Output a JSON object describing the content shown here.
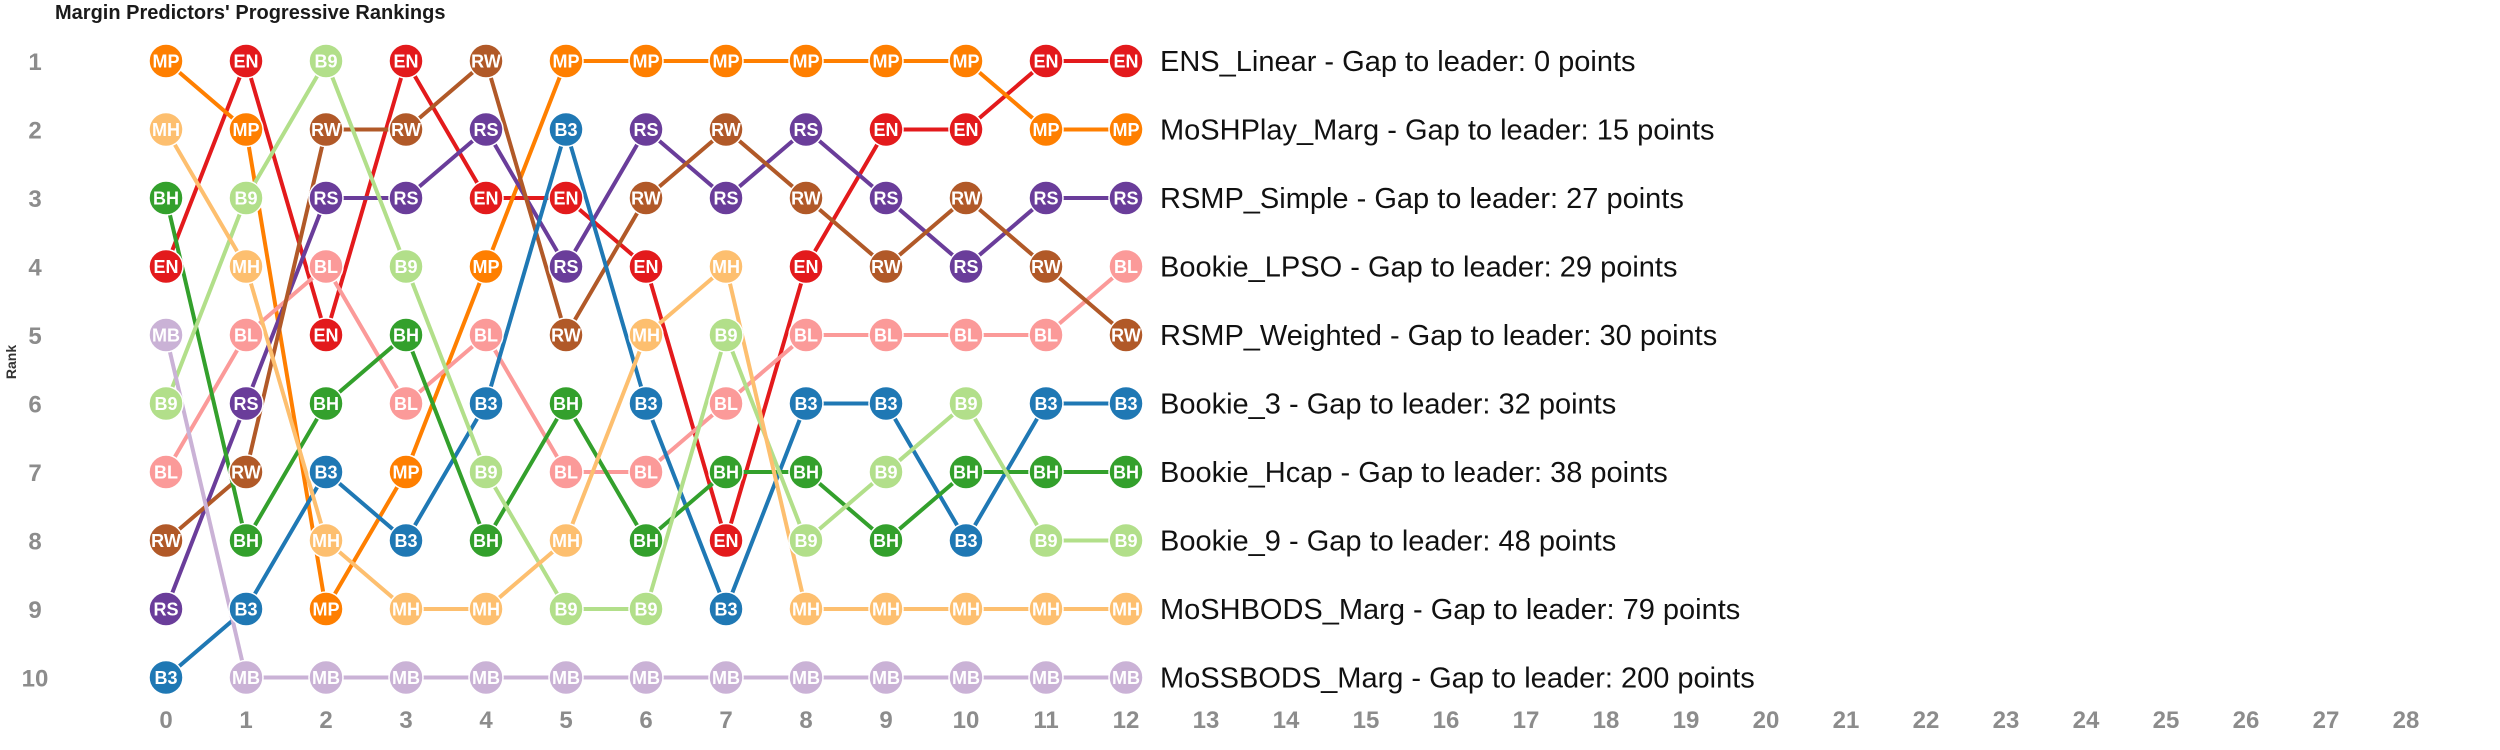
{
  "chart_data": {
    "type": "line",
    "title": "Margin Predictors' Progressive Rankings",
    "ylabel": "Rank",
    "xlabel": "",
    "x": [
      0,
      1,
      2,
      3,
      4,
      5,
      6,
      7,
      8,
      9,
      10,
      11,
      12,
      13,
      14,
      15,
      16,
      17,
      18,
      19,
      20,
      21,
      22,
      23,
      24,
      25,
      26,
      27,
      28
    ],
    "ranks": [
      1,
      2,
      3,
      4,
      5,
      6,
      7,
      8,
      9,
      10
    ],
    "xlim": [
      0,
      28
    ],
    "ylim": [
      10,
      1
    ],
    "grid": false,
    "legend": "none",
    "series": [
      {
        "code": "EN",
        "color": "#e31a1c",
        "ranks": [
          4,
          1,
          5,
          1,
          3,
          3,
          4,
          8,
          4,
          2,
          2,
          1,
          1
        ],
        "label": "ENS_Linear - Gap to leader: 0 points"
      },
      {
        "code": "MP",
        "color": "#ff7f00",
        "ranks": [
          1,
          2,
          9,
          7,
          4,
          1,
          1,
          1,
          1,
          1,
          1,
          2,
          2
        ],
        "label": "MoSHPlay_Marg - Gap to leader: 15 points"
      },
      {
        "code": "RS",
        "color": "#6a3d9a",
        "ranks": [
          9,
          6,
          3,
          3,
          2,
          4,
          2,
          3,
          2,
          3,
          4,
          3,
          3
        ],
        "label": "RSMP_Simple - Gap to leader: 27 points"
      },
      {
        "code": "BL",
        "color": "#fb9a99",
        "ranks": [
          7,
          5,
          4,
          6,
          5,
          7,
          7,
          6,
          5,
          5,
          5,
          5,
          4
        ],
        "label": "Bookie_LPSO - Gap to leader: 29 points"
      },
      {
        "code": "RW",
        "color": "#b15928",
        "ranks": [
          8,
          7,
          2,
          2,
          1,
          5,
          3,
          2,
          3,
          4,
          3,
          4,
          5
        ],
        "label": "RSMP_Weighted - Gap to leader: 30 points"
      },
      {
        "code": "B3",
        "color": "#1f78b4",
        "ranks": [
          10,
          9,
          7,
          8,
          6,
          2,
          6,
          9,
          6,
          6,
          8,
          6,
          6
        ],
        "label": "Bookie_3 - Gap to leader: 32 points"
      },
      {
        "code": "BH",
        "color": "#33a02c",
        "ranks": [
          3,
          8,
          6,
          5,
          8,
          6,
          8,
          7,
          7,
          8,
          7,
          7,
          7
        ],
        "label": "Bookie_Hcap - Gap to leader: 38 points"
      },
      {
        "code": "B9",
        "color": "#b2df8a",
        "ranks": [
          6,
          3,
          1,
          4,
          7,
          9,
          9,
          5,
          8,
          7,
          6,
          8,
          8
        ],
        "label": "Bookie_9 - Gap to leader: 48 points"
      },
      {
        "code": "MH",
        "color": "#fdbf6f",
        "ranks": [
          2,
          4,
          8,
          9,
          9,
          8,
          5,
          4,
          9,
          9,
          9,
          9,
          9
        ],
        "label": "MoSHBODS_Marg - Gap to leader: 79 points"
      },
      {
        "code": "MB",
        "color": "#cab2d6",
        "ranks": [
          5,
          10,
          10,
          10,
          10,
          10,
          10,
          10,
          10,
          10,
          10,
          10,
          10
        ],
        "label": "MoSSBODS_Marg - Gap to leader: 200 points"
      }
    ]
  }
}
